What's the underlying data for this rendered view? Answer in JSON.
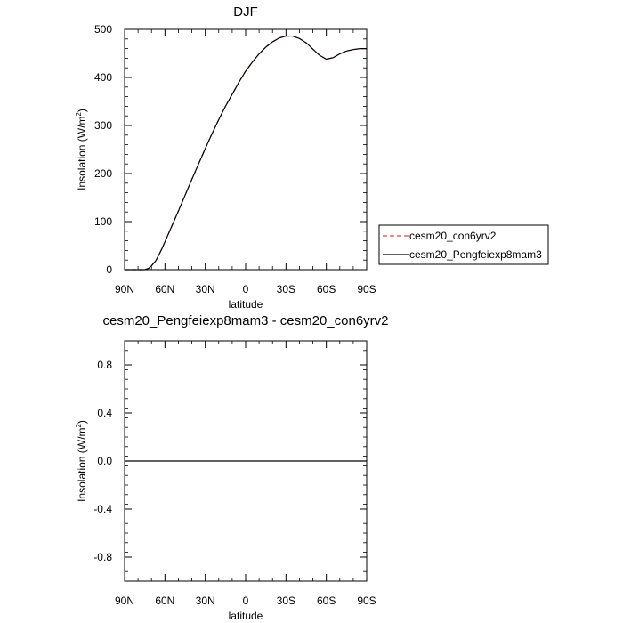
{
  "chart_data": [
    {
      "type": "line",
      "title": "DJF",
      "xlabel": "latitude",
      "ylabel_main": "Insolation (W/m",
      "ylabel_sup": "2",
      "ylabel_tail": ")",
      "xlim": [
        90,
        -90
      ],
      "ylim": [
        0,
        500
      ],
      "x_ticks": [
        90,
        60,
        30,
        0,
        -30,
        -60,
        -90
      ],
      "x_tick_labels": [
        "90N",
        "60N",
        "30N",
        "0",
        "30S",
        "60S",
        "90S"
      ],
      "y_ticks": [
        0,
        100,
        200,
        300,
        400,
        500
      ],
      "y_tick_labels": [
        "0",
        "100",
        "200",
        "300",
        "400",
        "500"
      ],
      "legend": {
        "placement": "right",
        "entries": [
          {
            "label": "cesm20_con6yrv2",
            "color": "#e04040",
            "dash": "dashed"
          },
          {
            "label": "cesm20_Pengfeiexp8mam3",
            "color": "#000000",
            "dash": "solid"
          }
        ]
      },
      "x": [
        90,
        85,
        80,
        75,
        72,
        70,
        67,
        65,
        62,
        60,
        55,
        50,
        45,
        40,
        35,
        30,
        25,
        20,
        15,
        10,
        5,
        0,
        -5,
        -10,
        -15,
        -20,
        -25,
        -30,
        -35,
        -40,
        -45,
        -50,
        -55,
        -60,
        -65,
        -70,
        -75,
        -80,
        -85,
        -90
      ],
      "series": [
        {
          "name": "cesm20_con6yrv2",
          "color": "#e04040",
          "dash": "dashed",
          "values": [
            0,
            0,
            0,
            0,
            3,
            8,
            18,
            28,
            45,
            58,
            90,
            122,
            155,
            188,
            220,
            252,
            283,
            312,
            340,
            365,
            390,
            413,
            432,
            449,
            463,
            474,
            482,
            486,
            486,
            481,
            472,
            459,
            446,
            438,
            441,
            449,
            455,
            458,
            460,
            460
          ]
        },
        {
          "name": "cesm20_Pengfeiexp8mam3",
          "color": "#000000",
          "dash": "solid",
          "values": [
            0,
            0,
            0,
            0,
            3,
            8,
            18,
            28,
            45,
            58,
            90,
            122,
            155,
            188,
            220,
            252,
            283,
            312,
            340,
            365,
            390,
            413,
            432,
            449,
            463,
            474,
            482,
            486,
            486,
            481,
            472,
            459,
            446,
            438,
            441,
            449,
            455,
            458,
            460,
            460
          ]
        }
      ]
    },
    {
      "type": "line",
      "title": "cesm20_Pengfeiexp8mam3 - cesm20_con6yrv2",
      "xlabel": "latitude",
      "ylabel_main": "Insolation (W/m",
      "ylabel_sup": "2",
      "ylabel_tail": ")",
      "xlim": [
        90,
        -90
      ],
      "ylim": [
        -1,
        1
      ],
      "x_ticks": [
        90,
        60,
        30,
        0,
        -30,
        -60,
        -90
      ],
      "x_tick_labels": [
        "90N",
        "60N",
        "30N",
        "0",
        "30S",
        "60S",
        "90S"
      ],
      "y_ticks": [
        -0.8,
        -0.4,
        0,
        0.4,
        0.8
      ],
      "y_tick_labels": [
        "-0.8",
        "-0.4",
        "0.0",
        "0.4",
        "0.8"
      ],
      "x": [
        90,
        -90
      ],
      "series": [
        {
          "color": "#000000",
          "dash": "solid",
          "values": [
            0,
            0
          ]
        }
      ]
    }
  ]
}
